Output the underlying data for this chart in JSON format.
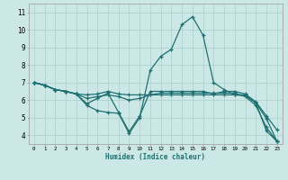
{
  "xlabel": "Humidex (Indice chaleur)",
  "xlim": [
    -0.5,
    23.5
  ],
  "ylim": [
    3.5,
    11.5
  ],
  "xticks": [
    0,
    1,
    2,
    3,
    4,
    5,
    6,
    7,
    8,
    9,
    10,
    11,
    12,
    13,
    14,
    15,
    16,
    17,
    18,
    19,
    20,
    21,
    22,
    23
  ],
  "yticks": [
    4,
    5,
    6,
    7,
    8,
    9,
    10,
    11
  ],
  "bg_color": "#cce8e6",
  "grid_color": "#aacfcc",
  "line_color": "#1e7070",
  "lines": [
    {
      "x": [
        0,
        1,
        2,
        3,
        4,
        5,
        6,
        7,
        8,
        9,
        10,
        11,
        12,
        13,
        14,
        15,
        16,
        17,
        18,
        19,
        20,
        21,
        22,
        23
      ],
      "y": [
        7.0,
        6.85,
        6.6,
        6.5,
        6.35,
        5.8,
        6.1,
        6.4,
        5.3,
        4.2,
        5.1,
        6.5,
        6.5,
        6.5,
        6.5,
        6.5,
        6.5,
        6.35,
        6.5,
        6.5,
        6.35,
        5.9,
        5.1,
        4.3
      ]
    },
    {
      "x": [
        0,
        1,
        2,
        3,
        4,
        5,
        6,
        7,
        8,
        9,
        10,
        11,
        12,
        13,
        14,
        15,
        16,
        17,
        18,
        19,
        20,
        21,
        22,
        23
      ],
      "y": [
        7.0,
        6.85,
        6.6,
        6.5,
        6.35,
        5.7,
        5.4,
        5.3,
        5.25,
        4.1,
        5.0,
        7.7,
        8.5,
        8.9,
        10.3,
        10.75,
        9.7,
        7.0,
        6.6,
        6.3,
        6.25,
        5.85,
        4.95,
        3.65
      ]
    },
    {
      "x": [
        0,
        1,
        2,
        3,
        4,
        5,
        6,
        7,
        8,
        9,
        10,
        11,
        12,
        13,
        14,
        15,
        16,
        17,
        18,
        19,
        20,
        21,
        22,
        23
      ],
      "y": [
        7.0,
        6.85,
        6.6,
        6.5,
        6.35,
        6.3,
        6.35,
        6.5,
        6.35,
        6.3,
        6.3,
        6.3,
        6.3,
        6.3,
        6.3,
        6.3,
        6.3,
        6.3,
        6.3,
        6.3,
        6.3,
        5.85,
        4.25,
        3.65
      ]
    },
    {
      "x": [
        0,
        1,
        2,
        3,
        4,
        5,
        6,
        7,
        8,
        9,
        10,
        11,
        12,
        13,
        14,
        15,
        16,
        17,
        18,
        19,
        20,
        21,
        22,
        23
      ],
      "y": [
        7.0,
        6.85,
        6.6,
        6.5,
        6.35,
        6.1,
        6.2,
        6.3,
        6.2,
        6.0,
        6.1,
        6.3,
        6.4,
        6.4,
        6.4,
        6.4,
        6.4,
        6.4,
        6.4,
        6.4,
        6.2,
        5.7,
        4.45,
        3.65
      ]
    }
  ]
}
